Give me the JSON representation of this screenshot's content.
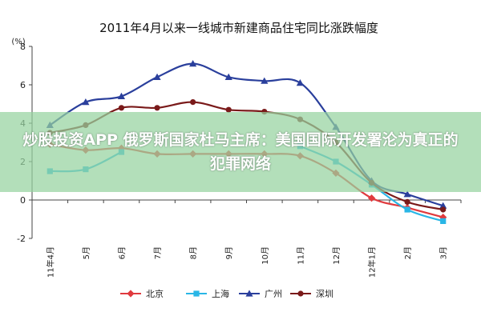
{
  "chart_data": {
    "type": "line",
    "title": "2011年4月以来一线城市新建商品住宅同比涨跌幅度",
    "ylabel": "(%)",
    "ylim": [
      -2,
      8
    ],
    "yticks": [
      -2,
      0,
      2,
      4,
      6,
      8
    ],
    "ytick_labels": [
      "-2",
      "0",
      "2",
      "4",
      "6",
      "8"
    ],
    "categories": [
      "11年4月",
      "5月",
      "6月",
      "7月",
      "8月",
      "9月",
      "10月",
      "11月",
      "12月",
      "12年1月",
      "2月",
      "3月"
    ],
    "x_ticks_shown": [
      "11年4月",
      "5月",
      "6月",
      "7月",
      "8月",
      "9月",
      "10月",
      "11月",
      "12月",
      "12年1月",
      "2月",
      "3月"
    ],
    "grid": false,
    "legend_position": "bottom",
    "series": [
      {
        "name": "北京",
        "color": "#e03a3e",
        "marker": "diamond",
        "values": [
          2.9,
          2.6,
          2.7,
          2.4,
          2.4,
          2.4,
          2.4,
          2.3,
          1.4,
          0.1,
          -0.4,
          -0.9
        ]
      },
      {
        "name": "上海",
        "color": "#29b6e6",
        "marker": "square",
        "values": [
          1.5,
          1.6,
          2.5,
          null,
          null,
          null,
          null,
          2.8,
          2.0,
          0.8,
          -0.5,
          -1.1
        ]
      },
      {
        "name": "广州",
        "color": "#2a3f9c",
        "marker": "triangle",
        "values": [
          3.9,
          5.1,
          5.4,
          6.4,
          7.1,
          6.4,
          6.2,
          6.1,
          3.8,
          1.0,
          0.3,
          -0.3
        ]
      },
      {
        "name": "深圳",
        "color": "#7a1a1a",
        "marker": "circle",
        "values": [
          3.5,
          3.9,
          4.8,
          4.8,
          5.1,
          4.7,
          4.6,
          4.2,
          3.0,
          0.9,
          -0.1,
          -0.5
        ]
      }
    ]
  },
  "overlay_text": "炒股投资APP 俄罗斯国家杜马主席：美国国际开发署沦为真正的犯罪网络"
}
